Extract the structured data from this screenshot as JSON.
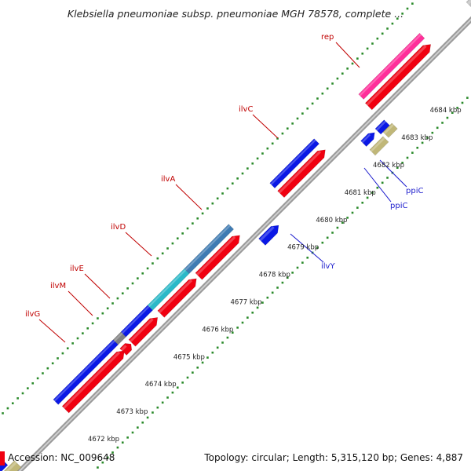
{
  "title": "Klebsiella pneumoniae subsp. pneumoniae MGH 78578, complete ...",
  "footer": {
    "accession": "Accession: NC_009648",
    "summary": "Topology: circular; Length: 5,315,120 bp; Genes: 4,887"
  },
  "colors": {
    "forward_cds": "#0a18e6",
    "reverse_cds": "#f00010",
    "rrna": "#3f7bb3",
    "trna": "#2ab9c8",
    "pseudo": "#c0b778",
    "other": "#bfbfbf",
    "rep": "#ff2f9a",
    "gene_label_red": "#c00000",
    "gene_label_blue": "#1a1acc",
    "backbone": "#808080",
    "tick": "#2a8a2a"
  },
  "axis": {
    "unit": "kbp",
    "ticks": [
      {
        "kbp": 4672,
        "label": "4672 kbp"
      },
      {
        "kbp": 4673,
        "label": "4673 kbp"
      },
      {
        "kbp": 4674,
        "label": "4674 kbp"
      },
      {
        "kbp": 4675,
        "label": "4675 kbp"
      },
      {
        "kbp": 4676,
        "label": "4676 kbp"
      },
      {
        "kbp": 4677,
        "label": "4677 kbp"
      },
      {
        "kbp": 4678,
        "label": "4678 kbp"
      },
      {
        "kbp": 4679,
        "label": "4679 kbp"
      },
      {
        "kbp": 4680,
        "label": "4680 kbp"
      },
      {
        "kbp": 4681,
        "label": "4681 kbp"
      },
      {
        "kbp": 4682,
        "label": "4682 kbp"
      },
      {
        "kbp": 4683,
        "label": "4683 kbp"
      },
      {
        "kbp": 4684,
        "label": "4684 kbp"
      }
    ]
  },
  "gene_labels": [
    {
      "name": "rep",
      "strand": "forward"
    },
    {
      "name": "ilvC",
      "strand": "forward"
    },
    {
      "name": "ilvA",
      "strand": "forward"
    },
    {
      "name": "ilvD",
      "strand": "forward"
    },
    {
      "name": "ilvE",
      "strand": "forward"
    },
    {
      "name": "ilvM",
      "strand": "forward"
    },
    {
      "name": "ilvG",
      "strand": "forward"
    },
    {
      "name": "ilvY",
      "strand": "reverse"
    },
    {
      "name": "ppiC",
      "strand": "reverse"
    },
    {
      "name": "ppiC",
      "strand": "reverse"
    }
  ]
}
